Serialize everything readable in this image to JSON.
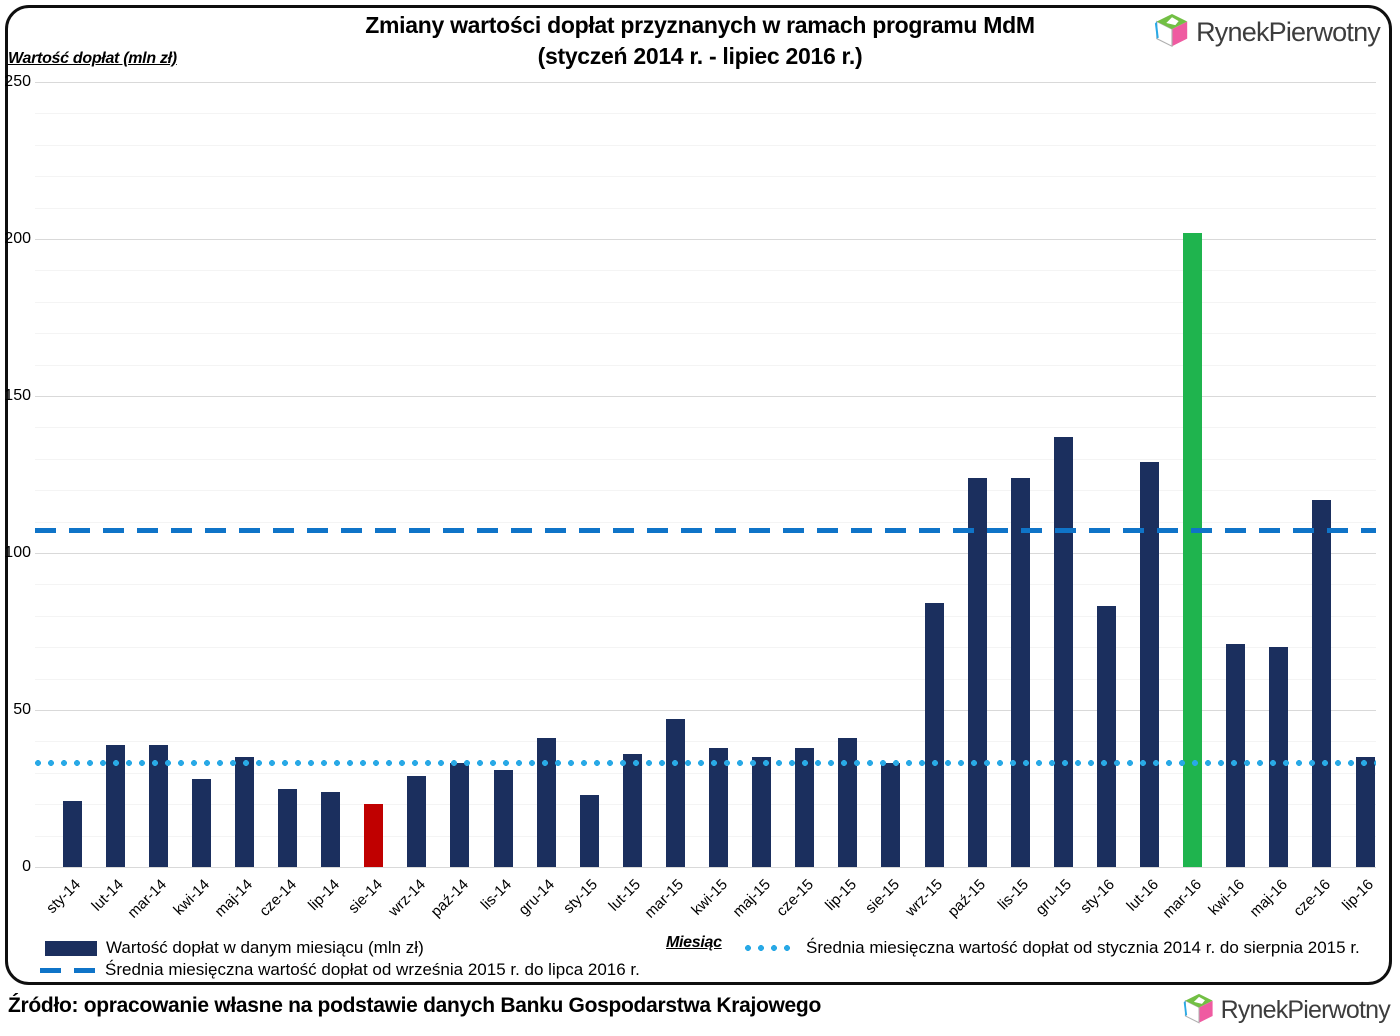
{
  "title": {
    "line1": "Zmiany wartości dopłat przyznanych w ramach programu MdM",
    "line2": "(styczeń 2014 r. - lipiec 2016 r.)"
  },
  "y_axis_title": "Wartość dopłat (mln zł)",
  "x_axis_title": "Miesiąc",
  "legend": {
    "bars_label": "Wartość dopłat w danym miesiącu (mln zł)",
    "dashed_label": "Średnia miesięczna wartość dopłat od września 2015 r. do lipca 2016 r.",
    "dotted_label": "Średnia miesięczna wartość dopłat od stycznia 2014 r. do sierpnia 2015 r."
  },
  "source_text": "Źródło: opracowanie własne na podstawie danych Banku Gospodarstwa Krajowego",
  "logo": {
    "text": "RynekPierwotny"
  },
  "colors": {
    "bar_navy": "#1b2f5e",
    "bar_red": "#c00000",
    "bar_green": "#1fb44e",
    "dashed_line": "#0f74c8",
    "dotted_line": "#29a9e6",
    "grid_major": "#d9d9d9",
    "grid_minor": "#f4f4f4"
  },
  "chart_data": {
    "type": "bar",
    "title": "Zmiany wartości dopłat przyznanych w ramach programu MdM (styczeń 2014 r. - lipiec 2016 r.)",
    "xlabel": "Miesiąc",
    "ylabel": "Wartość dopłat (mln zł)",
    "ylim": [
      0,
      250
    ],
    "yticks": [
      0,
      50,
      100,
      150,
      200,
      250
    ],
    "grid": true,
    "legend_position": "bottom",
    "categories": [
      "sty-14",
      "lut-14",
      "mar-14",
      "kwi-14",
      "maj-14",
      "cze-14",
      "lip-14",
      "sie-14",
      "wrz-14",
      "paź-14",
      "lis-14",
      "gru-14",
      "sty-15",
      "lut-15",
      "mar-15",
      "kwi-15",
      "maj-15",
      "cze-15",
      "lip-15",
      "sie-15",
      "wrz-15",
      "paź-15",
      "lis-15",
      "gru-15",
      "sty-16",
      "lut-16",
      "mar-16",
      "kwi-16",
      "maj-16",
      "cze-16",
      "lip-16"
    ],
    "values": [
      21,
      39,
      39,
      28,
      35,
      25,
      24,
      20,
      29,
      33,
      31,
      41,
      23,
      36,
      47,
      38,
      35,
      38,
      41,
      33,
      84,
      124,
      124,
      137,
      83,
      129,
      202,
      71,
      70,
      117,
      35
    ],
    "series_name": "Wartość dopłat w danym miesiącu (mln zł)",
    "special_bars": [
      {
        "index": 7,
        "category": "sie-14",
        "color": "#c00000"
      },
      {
        "index": 26,
        "category": "mar-16",
        "color": "#1fb44e"
      }
    ],
    "reference_lines": [
      {
        "value": 33,
        "style": "dotted",
        "color": "#29a9e6",
        "label": "Średnia miesięczna wartość dopłat od stycznia 2014 r. do sierpnia 2015 r."
      },
      {
        "value": 107,
        "style": "dashed",
        "color": "#0f74c8",
        "label": "Średnia miesięczna wartość dopłat od września 2015 r. do lipca 2016 r."
      }
    ]
  }
}
